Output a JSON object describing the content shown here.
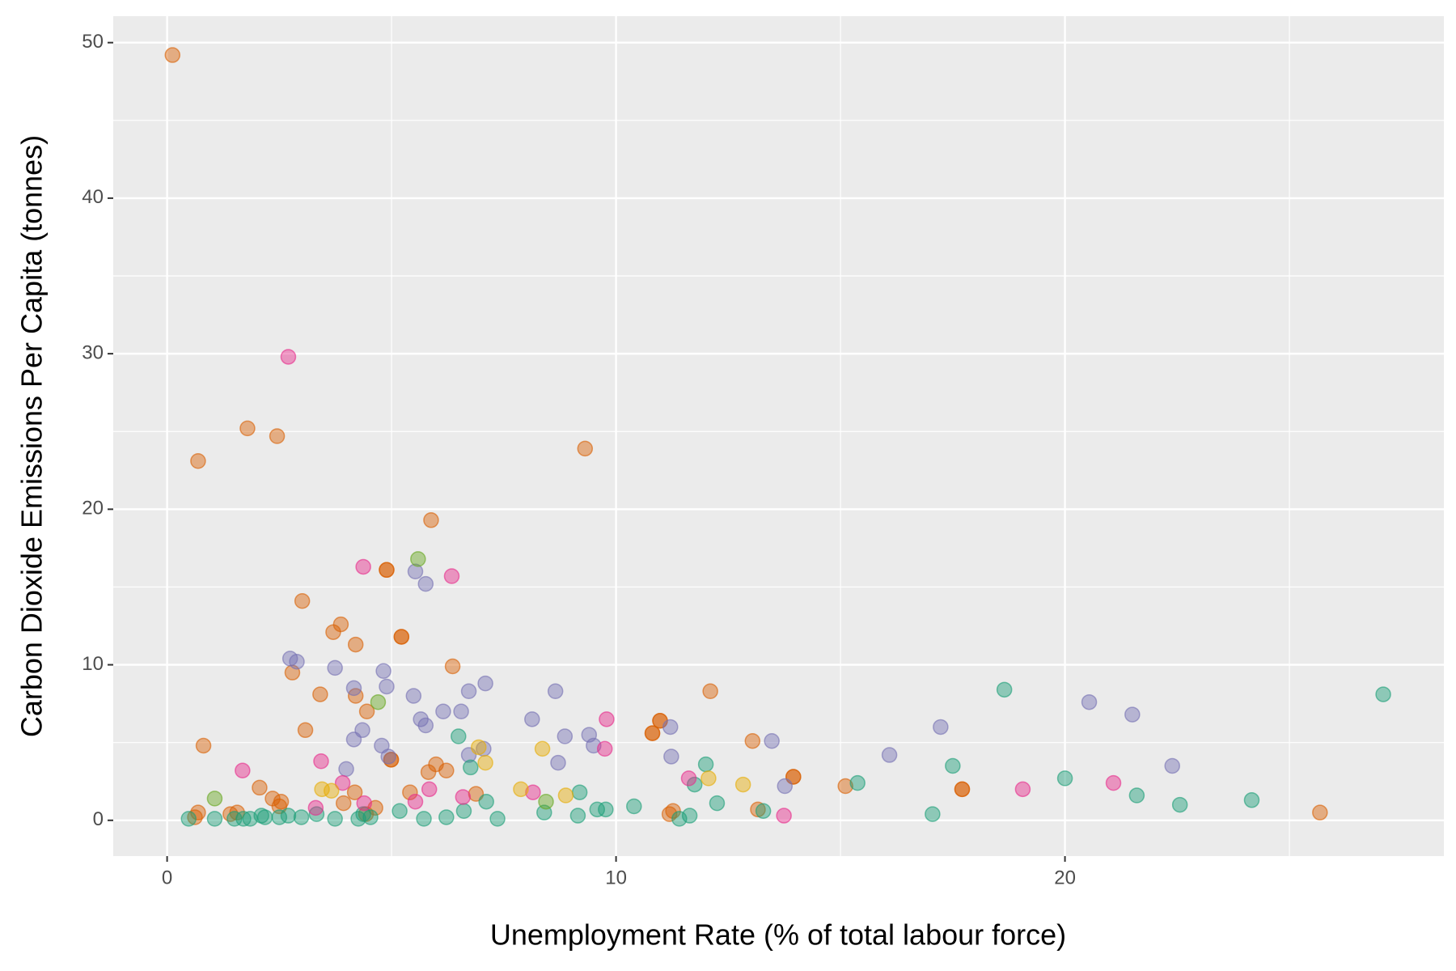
{
  "chart_data": {
    "type": "scatter",
    "x_label": "Unemployment Rate (% of total labour force)",
    "y_label": "Carbon Dioxide Emissions Per Capita (tonnes)",
    "xlim": [
      -1.2,
      28.44
    ],
    "ylim": [
      -2.3,
      51.7
    ],
    "xticks": [
      0,
      10,
      20
    ],
    "yticks": [
      0,
      10,
      20,
      30,
      40,
      50
    ],
    "x_minor_grid": [
      5,
      15,
      25
    ],
    "y_minor_grid": [
      5,
      15,
      25,
      35,
      45
    ],
    "grid": true,
    "series": [
      {
        "color": "#d95f02",
        "x": [
          0.12,
          0.69,
          1.79,
          2.45,
          9.31,
          5.88,
          3.01,
          3.87,
          3.7,
          4.2,
          6.36,
          2.79,
          3.41,
          4.2,
          12.1,
          4.45,
          3.08,
          0.81,
          13.04,
          2.06,
          2.35,
          2.54,
          2.5,
          5.41,
          5.82,
          5.99,
          6.22,
          6.88,
          4.18,
          3.93,
          1.41,
          1.56,
          0.69,
          0.62,
          4.64,
          4.43,
          11.19,
          11.27,
          13.16,
          15.11,
          25.68,
          4.89,
          4.89,
          5.22,
          5.22,
          4.99,
          4.99,
          10.98,
          10.98,
          10.81,
          10.81,
          13.95,
          13.95,
          17.71,
          17.71
        ],
        "values": [
          49.2,
          23.1,
          25.2,
          24.7,
          23.9,
          19.3,
          14.1,
          12.6,
          12.1,
          11.3,
          9.9,
          9.5,
          8.1,
          8.0,
          8.3,
          7.0,
          5.8,
          4.8,
          5.1,
          2.1,
          1.4,
          1.2,
          0.9,
          1.8,
          3.1,
          3.6,
          3.2,
          1.7,
          1.8,
          1.1,
          0.4,
          0.5,
          0.5,
          0.2,
          0.8,
          0.4,
          0.4,
          0.6,
          0.7,
          2.2,
          0.5,
          16.1,
          16.1,
          11.8,
          11.8,
          3.9,
          3.9,
          6.4,
          6.4,
          5.6,
          5.6,
          2.8,
          2.8,
          2.0,
          2.0
        ]
      },
      {
        "color": "#7570b3",
        "x": [
          2.74,
          2.89,
          3.74,
          4.82,
          4.89,
          5.53,
          5.76,
          4.16,
          5.49,
          6.72,
          7.09,
          6.15,
          6.55,
          5.65,
          5.76,
          4.35,
          4.16,
          4.78,
          4.93,
          6.72,
          7.05,
          3.99,
          8.13,
          8.65,
          8.86,
          8.71,
          9.4,
          9.5,
          11.21,
          11.23,
          13.47,
          13.76,
          16.09,
          17.23,
          20.54,
          21.5,
          22.39
        ],
        "values": [
          10.4,
          10.2,
          9.8,
          9.6,
          8.6,
          16.0,
          15.2,
          8.5,
          8.0,
          8.3,
          8.8,
          7.0,
          7.0,
          6.5,
          6.1,
          5.8,
          5.2,
          4.8,
          4.1,
          4.2,
          4.6,
          3.3,
          6.5,
          8.3,
          5.4,
          3.7,
          5.5,
          4.8,
          6.0,
          4.1,
          5.1,
          2.2,
          4.2,
          6.0,
          7.6,
          6.8,
          3.5
        ]
      },
      {
        "color": "#1b9e77",
        "x": [
          0.48,
          1.06,
          1.5,
          1.7,
          1.85,
          2.1,
          2.18,
          2.5,
          2.7,
          2.99,
          3.33,
          3.74,
          4.26,
          4.37,
          4.53,
          5.18,
          5.72,
          6.22,
          6.61,
          7.11,
          7.36,
          6.49,
          6.76,
          8.4,
          9.15,
          9.19,
          9.58,
          9.77,
          10.4,
          11.41,
          11.64,
          11.75,
          12.0,
          12.25,
          13.28,
          15.38,
          17.05,
          17.5,
          18.65,
          20.0,
          21.6,
          22.56,
          24.16,
          27.09
        ],
        "values": [
          0.1,
          0.1,
          0.1,
          0.1,
          0.1,
          0.3,
          0.2,
          0.2,
          0.3,
          0.2,
          0.4,
          0.1,
          0.1,
          0.4,
          0.2,
          0.6,
          0.1,
          0.2,
          0.6,
          1.2,
          0.1,
          5.4,
          3.4,
          0.5,
          0.3,
          1.8,
          0.7,
          0.7,
          0.9,
          0.1,
          0.3,
          2.3,
          3.6,
          1.1,
          0.6,
          2.4,
          0.4,
          3.5,
          8.4,
          2.7,
          1.6,
          1.0,
          1.3,
          8.1
        ]
      },
      {
        "color": "#e7298a",
        "x": [
          2.7,
          4.37,
          6.34,
          3.43,
          1.68,
          9.79,
          9.75,
          5.84,
          6.59,
          5.53,
          3.31,
          4.39,
          8.15,
          11.62,
          13.74,
          19.06,
          21.08,
          3.91
        ],
        "values": [
          29.8,
          16.3,
          15.7,
          3.8,
          3.2,
          6.5,
          4.6,
          2.0,
          1.5,
          1.2,
          0.8,
          1.1,
          1.8,
          2.7,
          0.3,
          2.0,
          2.4,
          2.4
        ]
      },
      {
        "color": "#66a61e",
        "x": [
          5.59,
          4.7,
          1.06,
          8.44
        ],
        "values": [
          16.8,
          7.6,
          1.4,
          1.2
        ]
      },
      {
        "color": "#e6ab02",
        "x": [
          8.36,
          6.94,
          7.09,
          3.45,
          3.66,
          7.88,
          8.88,
          12.06,
          12.83
        ],
        "values": [
          4.6,
          4.7,
          3.7,
          2.0,
          1.9,
          2.0,
          1.6,
          2.7,
          2.3
        ]
      }
    ]
  }
}
